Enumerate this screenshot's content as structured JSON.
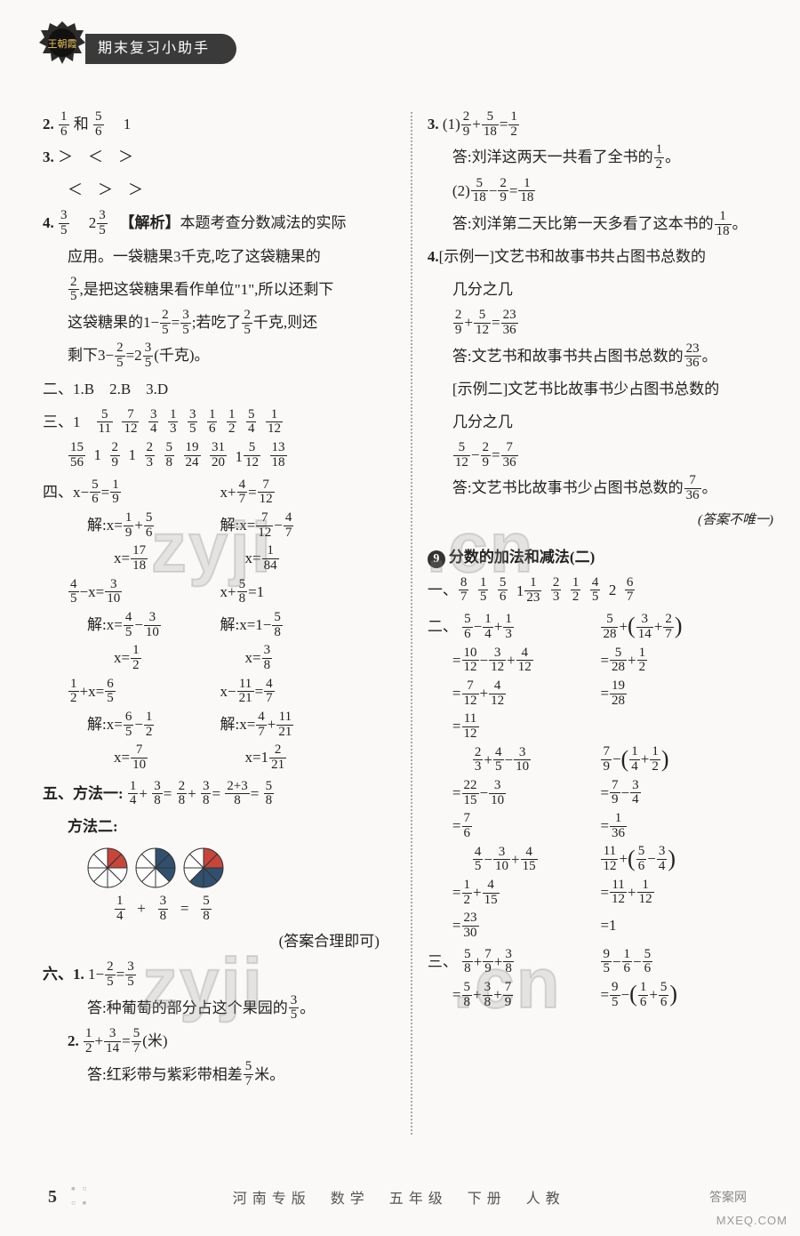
{
  "header": {
    "banner": "期末复习小助手",
    "logo_text": "王朝霞"
  },
  "footer": {
    "page": "5",
    "mid": "河南专版　数学　五年级　下册　人教",
    "corner": "MXEQ.COM",
    "tag": "答案网"
  },
  "watermark": {
    "a": "zyji",
    "b": ".cn",
    "c": "zyji",
    "d": ".cn"
  },
  "left": {
    "l2a": "2.",
    "l2b": "和",
    "l2c": "　1",
    "l3a": "3.",
    "l3b": "＞　＜　＞",
    "l3c": "＜　＞　＞",
    "l4a": "4.",
    "l4b": "　2",
    "l4c": "　【解析】",
    "l4d": "本题考查分数减法的实际",
    "l4e": "应用。一袋糖果3千克,吃了这袋糖果的",
    "l4f": ",是把这袋糖果看作单位\"1\",所以还剩下",
    "l4g": "这袋糖果的1−",
    "l4h": "=",
    "l4i": ";若吃了",
    "l4j": "千克,则还",
    "l4k": "剩下3−",
    "l4l": "=2",
    "l4m": "(千克)。",
    "l5": "二、1.B　2.B　3.D",
    "l6": "三、1　",
    "s3": [
      "5/11",
      "7/12",
      "3/4",
      "1/3",
      "3/5",
      "1/6",
      "1/2",
      "5/4",
      "1/12",
      "15/56",
      "1",
      "2/9",
      "1",
      "2/3",
      "5/8",
      "19/24",
      "31/20",
      "1 5/12",
      "13/18"
    ],
    "l7": "四、",
    "eqL": [
      "x− 5/6 = 1/9",
      "解:x= 1/9 + 5/6",
      "x= 17/18",
      "4/5 −x= 3/10",
      "解:x= 4/5 − 3/10",
      "x= 1/2",
      "1/2 +x= 6/5",
      "解:x= 6/5 − 1/2",
      "x= 7/10"
    ],
    "eqR": [
      "x+ 4/7 = 7/12",
      "解:x= 7/12 − 4/7",
      "x= 1/84",
      "x+ 5/8 =1",
      "解:x=1− 5/8",
      "x= 3/8",
      "x− 11/21 = 4/7",
      "解:x= 4/7 + 11/21",
      "x=1 2/21"
    ],
    "l8a": "五、方法一:",
    "l8b": "+",
    "l8c": "=",
    "l8d": "+",
    "l8e": "=",
    "l8f": "=",
    "m1": [
      "1/4",
      "3/8",
      "2/8",
      "3/8",
      "2+3/8",
      "5/8"
    ],
    "l9": "方法二:",
    "pie_vals": [
      "1/4",
      "+",
      "3/8",
      "=",
      "5/8"
    ],
    "pie_note": "(答案合理即可)",
    "l10": "六、1.",
    "l10b": "1−",
    "l10c": "=",
    "q61": [
      "2/5",
      "3/5"
    ],
    "l10d": "答:种葡萄的部分占这个果园的",
    "l10e": "。",
    "l11": "2.",
    "q62a": "+",
    "q62b": "=",
    "q62c": "(米)",
    "q62": [
      "1/2",
      "3/14",
      "5/7"
    ],
    "l11b": "答:红彩带与紫彩带相差",
    "l11c": "米。"
  },
  "right": {
    "r3a": "3.",
    "r3b": "(1)",
    "r3c": "+",
    "r3d": "=",
    "q31": [
      "2/9",
      "5/18",
      "1/2"
    ],
    "r3e": "答:刘洋这两天一共看了全书的",
    "r3f": "。",
    "r3g": "(2)",
    "r3h": "−",
    "r3i": "=",
    "q32": [
      "5/18",
      "2/9",
      "1/18"
    ],
    "r3j": "答:刘洋第二天比第一天多看了这本书的",
    "r3k": "。",
    "r4a": "4.",
    "r4b": "[示例一]文艺书和故事书共占图书总数的",
    "r4c": "几分之几",
    "r4d": "+",
    "r4e": "=",
    "q41": [
      "2/9",
      "5/12",
      "23/36"
    ],
    "r4f": "答:文艺书和故事书共占图书总数的",
    "r4g": "。",
    "r4h": "[示例二]文艺书比故事书少占图书总数的",
    "r4i": "几分之几",
    "r4j": "−",
    "r4k": "=",
    "q42": [
      "5/12",
      "2/9",
      "7/36"
    ],
    "r4l": "答:文艺书比故事书少占图书总数的",
    "r4m": "。",
    "r4n": "(答案不唯一)",
    "sec9": "分数的加法和减法(二)",
    "s1lead": "一、",
    "s1": [
      "8/7",
      "1/5",
      "5/6",
      "1 1/23",
      "2/3",
      "1/2",
      "4/5",
      "2",
      "6/7"
    ],
    "s2lead": "二、",
    "calcL": [
      "5/6 − 1/4 + 1/3",
      "= 10/12 − 3/12 + 4/12",
      "= 7/12 + 4/12",
      "= 11/12",
      "2/3 + 4/5 − 3/10",
      "= 22/15 − 3/10",
      "= 7/6",
      "4/5 − 3/10 + 4/15",
      "= 1/2 + 4/15",
      "= 23/30"
    ],
    "calcR": [
      "5/28 + ( 3/14 + 2/7 )",
      "= 5/28 + 1/2",
      "= 19/28",
      "",
      "7/9 − ( 1/4 + 1/2 )",
      "= 7/9 − 3/4",
      "= 1/36",
      "11/12 + ( 5/6 − 3/4 )",
      "= 11/12 + 1/12",
      "=1"
    ],
    "s3lead": "三、",
    "t3L": [
      "5/8 + 7/9 + 3/8",
      "= 5/8 + 3/8 + 7/9"
    ],
    "t3R": [
      "9/5 − 1/6 − 5/6",
      "= 9/5 − ( 1/6 + 5/6 )"
    ]
  },
  "pies": [
    {
      "slices": 8,
      "filled": [
        0,
        1
      ],
      "color": "#c9453a"
    },
    {
      "slices": 8,
      "filled": [
        0,
        1,
        2
      ],
      "color": "#30506e"
    },
    {
      "slices": 8,
      "filled": [
        0,
        1
      ],
      "color": "#c9453a",
      "filled2": [
        2,
        3,
        4
      ],
      "color2": "#30506e"
    }
  ]
}
